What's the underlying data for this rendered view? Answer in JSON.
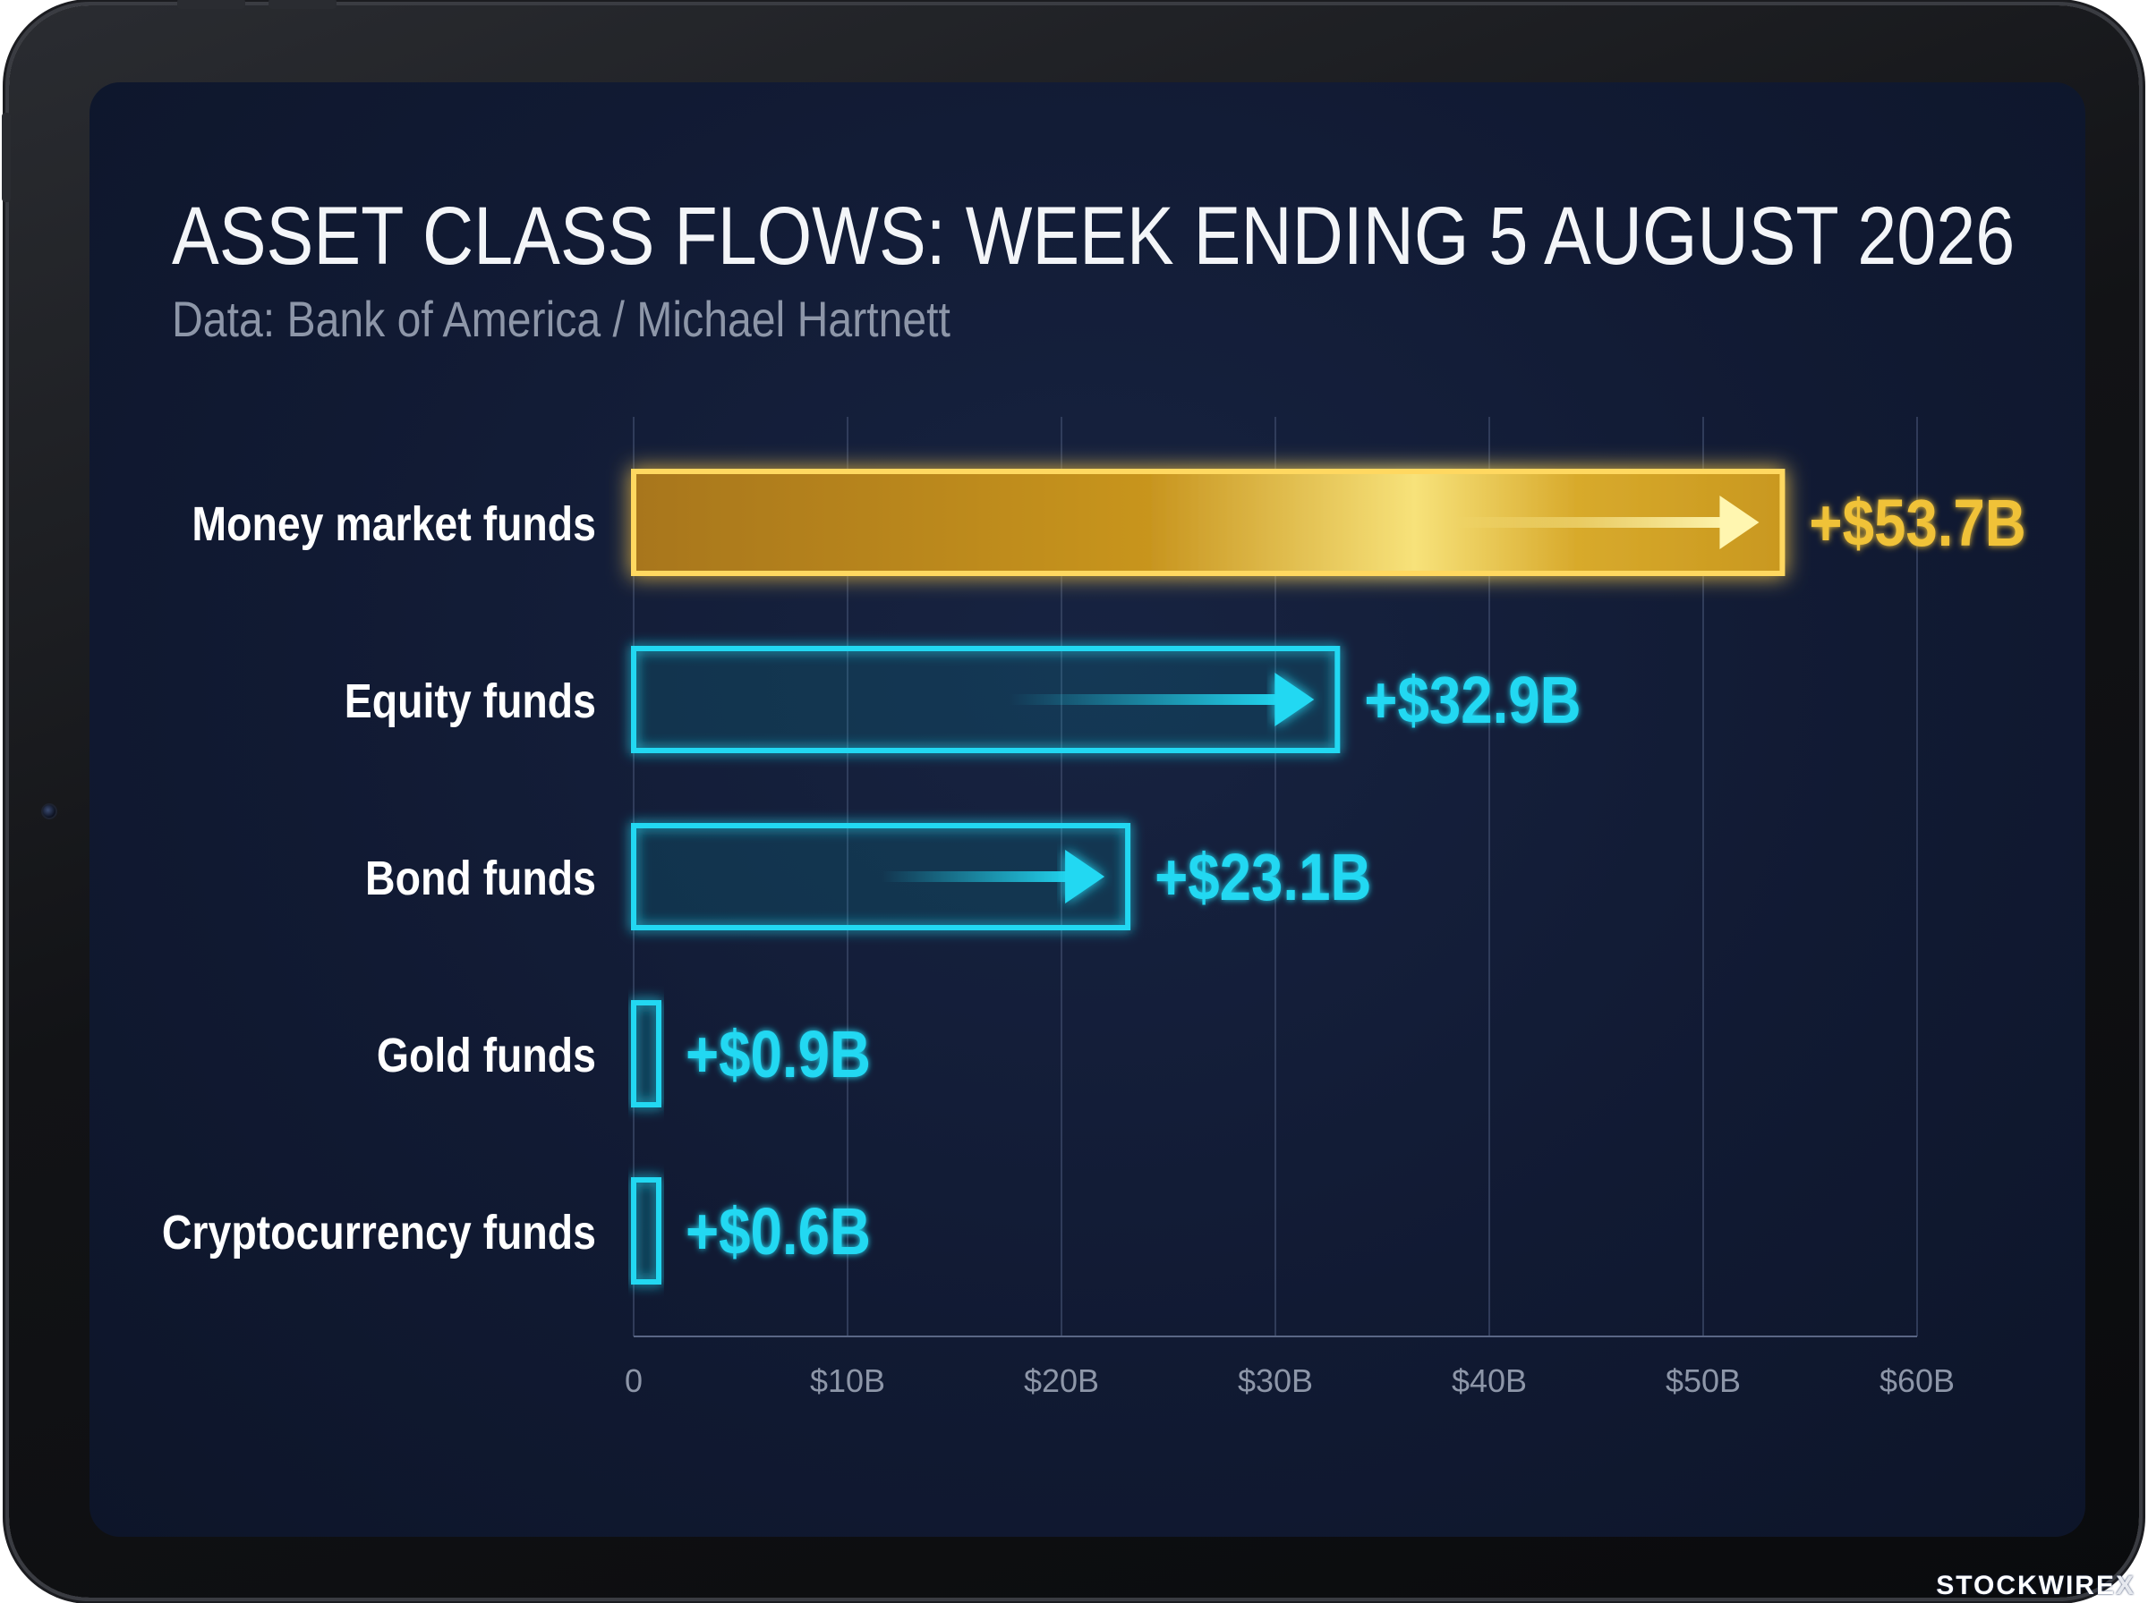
{
  "title": "ASSET CLASS FLOWS: WEEK ENDING 5 AUGUST 2026",
  "subtitle": "Data: Bank of America / Michael Hartnett",
  "watermark": {
    "brand": "STOCKWIRE",
    "suffix": "X"
  },
  "colors": {
    "highlight": "#f0c238",
    "accent": "#22d8f2",
    "background": "#111a33",
    "axis_text": "#8d96a8"
  },
  "chart_data": {
    "type": "bar",
    "orientation": "horizontal",
    "title": "ASSET CLASS FLOWS: WEEK ENDING 5 AUGUST 2026",
    "subtitle": "Data: Bank of America / Michael Hartnett",
    "categories": [
      "Money market funds",
      "Equity funds",
      "Bond funds",
      "Gold funds",
      "Cryptocurrency funds"
    ],
    "values": [
      53.7,
      32.9,
      23.1,
      0.9,
      0.6
    ],
    "value_labels": [
      "+$53.7B",
      "+$32.9B",
      "+$23.1B",
      "+$0.9B",
      "+$0.6B"
    ],
    "units": "billion USD",
    "xlim": [
      0,
      60
    ],
    "xticks": [
      0,
      10,
      20,
      30,
      40,
      50,
      60
    ],
    "xtick_labels": [
      "0",
      "$10B",
      "$20B",
      "$30B",
      "$40B",
      "$50B",
      "$60B"
    ],
    "highlight_category": "Money market funds",
    "grid": true,
    "legend": "none"
  }
}
